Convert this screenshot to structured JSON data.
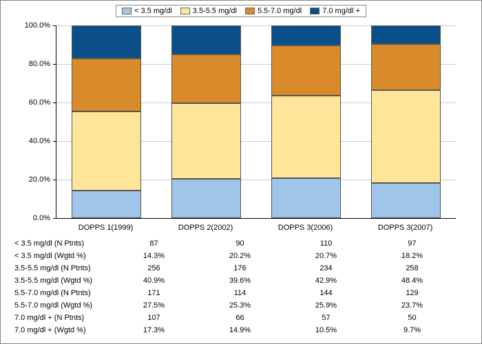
{
  "chart": {
    "type": "stacked-bar-percent",
    "background_color": "#ffffff",
    "grid_color": "#cccccc",
    "axis_color": "#000000",
    "frame_color": "#888888",
    "font_size": 11,
    "ylim": [
      0,
      100
    ],
    "ytick_step": 20,
    "y_ticks": [
      {
        "value": 0,
        "label": "0.0%"
      },
      {
        "value": 20,
        "label": "20.0%"
      },
      {
        "value": 40,
        "label": "40.0%"
      },
      {
        "value": 60,
        "label": "60.0%"
      },
      {
        "value": 80,
        "label": "80.0%"
      },
      {
        "value": 100,
        "label": "100.0%"
      }
    ],
    "categories": [
      {
        "key": "c0",
        "label": "DOPPS 1(1999)"
      },
      {
        "key": "c1",
        "label": "DOPPS 2(2002)"
      },
      {
        "key": "c2",
        "label": "DOPPS 3(2006)"
      },
      {
        "key": "c3",
        "label": "DOPPS 3(2007)"
      }
    ],
    "series": [
      {
        "key": "s0",
        "label": "< 3.5 mg/dl",
        "color": "#9fc5e8"
      },
      {
        "key": "s1",
        "label": "3.5-5.5 mg/dl",
        "color": "#ffe599"
      },
      {
        "key": "s2",
        "label": "5.5-7.0 mg/dl",
        "color": "#d98b2b"
      },
      {
        "key": "s3",
        "label": "7.0 mg/dl +",
        "color": "#0b4f8a"
      }
    ],
    "values_pct": {
      "c0": {
        "s0": 14.3,
        "s1": 40.9,
        "s2": 27.5,
        "s3": 17.3
      },
      "c1": {
        "s0": 20.2,
        "s1": 39.6,
        "s2": 25.3,
        "s3": 14.9
      },
      "c2": {
        "s0": 20.7,
        "s1": 42.9,
        "s2": 25.9,
        "s3": 10.5
      },
      "c3": {
        "s0": 18.2,
        "s1": 48.4,
        "s2": 23.7,
        "s3": 9.7
      }
    }
  },
  "table": {
    "rows": [
      {
        "label": "< 3.5 mg/dl   (N Ptnts)",
        "cells": [
          "87",
          "90",
          "110",
          "97"
        ]
      },
      {
        "label": "< 3.5 mg/dl   (Wgtd %)",
        "cells": [
          "14.3%",
          "20.2%",
          "20.7%",
          "18.2%"
        ]
      },
      {
        "label": "3.5-5.5 mg/dl (N Ptnts)",
        "cells": [
          "256",
          "176",
          "234",
          "258"
        ]
      },
      {
        "label": "3.5-5.5 mg/dl (Wgtd %)",
        "cells": [
          "40.9%",
          "39.6%",
          "42.9%",
          "48.4%"
        ]
      },
      {
        "label": "5.5-7.0 mg/dl (N Ptnts)",
        "cells": [
          "171",
          "114",
          "144",
          "129"
        ]
      },
      {
        "label": "5.5-7.0 mg/dl (Wgtd %)",
        "cells": [
          "27.5%",
          "25.3%",
          "25.9%",
          "23.7%"
        ]
      },
      {
        "label": "7.0 mg/dl +   (N Ptnts)",
        "cells": [
          "107",
          "66",
          "57",
          "50"
        ]
      },
      {
        "label": "7.0 mg/dl +   (Wgtd %)",
        "cells": [
          "17.3%",
          "14.9%",
          "10.5%",
          "9.7%"
        ]
      }
    ]
  }
}
